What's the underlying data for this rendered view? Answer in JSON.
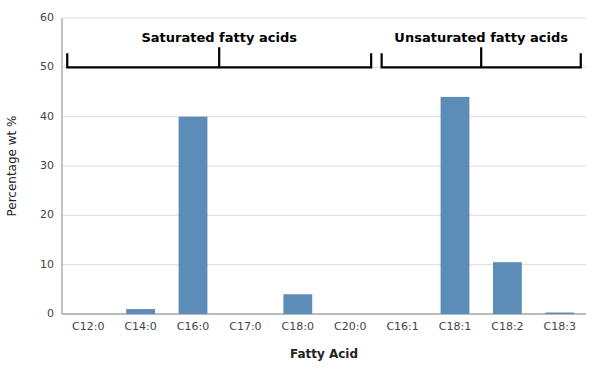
{
  "chart_data": {
    "type": "bar",
    "categories": [
      "C12:0",
      "C14:0",
      "C16:0",
      "C17:0",
      "C18:0",
      "C20:0",
      "C16:1",
      "C18:1",
      "C18:2",
      "C18:3"
    ],
    "values": [
      0.0,
      1.0,
      40.0,
      0.0,
      4.0,
      0.0,
      0.0,
      44.0,
      10.5,
      0.3
    ],
    "color": "#5b8db8",
    "xlabel": "Fatty Acid",
    "ylabel": "Percentage wt %",
    "ylim": [
      0,
      60
    ],
    "yticks": [
      0,
      10,
      20,
      30,
      40,
      50,
      60
    ],
    "grid": true,
    "annotations": [
      {
        "text": "Saturated fatty acids",
        "from": "C12:0",
        "to": "C20:0",
        "y": 50.0
      },
      {
        "text": "Unsaturated fatty acids",
        "from": "C16:1",
        "to": "C18:3",
        "y": 50.0
      }
    ]
  }
}
